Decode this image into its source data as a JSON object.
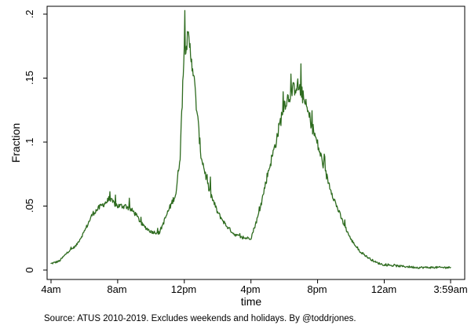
{
  "colors": {
    "series_line": "#2e6b1f",
    "axis": "#000000",
    "background": "#ffffff"
  },
  "chart_data": {
    "type": "line",
    "title": "",
    "xlabel": "time",
    "ylabel": "Fraction",
    "note": "Source: ATUS 2010-2019. Excludes weekends and holidays. By @toddrjones.",
    "grid": false,
    "legend": "none",
    "x_unit": "clock time of day, 4am through 3:59am the next day",
    "xlim": [
      "4am",
      "3:59am"
    ],
    "ylim": [
      0,
      0.2
    ],
    "x_ticks": [
      "4am",
      "8am",
      "12pm",
      "4pm",
      "8pm",
      "12am",
      "3:59am"
    ],
    "y_ticks": [
      "0",
      ".05",
      ".1",
      ".15",
      ".2"
    ],
    "series": [
      {
        "x": [
          "4:00am",
          "4:30am",
          "5:00am",
          "5:30am",
          "6:00am",
          "6:30am",
          "7:00am",
          "7:30am",
          "8:00am",
          "8:30am",
          "9:00am",
          "9:30am",
          "10:00am",
          "10:30am",
          "11:00am",
          "11:30am",
          "11:45am",
          "12:00pm",
          "12:15pm",
          "12:30pm",
          "12:45pm",
          "1:00pm",
          "1:30pm",
          "2:00pm",
          "2:30pm",
          "3:00pm",
          "3:30pm",
          "4:00pm",
          "4:30pm",
          "5:00pm",
          "5:30pm",
          "6:00pm",
          "6:30pm",
          "6:45pm",
          "7:00pm",
          "7:30pm",
          "8:00pm",
          "8:30pm",
          "9:00pm",
          "9:30pm",
          "10:00pm",
          "10:30pm",
          "11:00pm",
          "11:30pm",
          "12:00am",
          "1:00am",
          "2:00am",
          "3:00am",
          "3:59am"
        ],
        "y": [
          0.005,
          0.007,
          0.014,
          0.019,
          0.03,
          0.044,
          0.05,
          0.055,
          0.05,
          0.05,
          0.045,
          0.035,
          0.03,
          0.029,
          0.045,
          0.06,
          0.09,
          0.175,
          0.18,
          0.16,
          0.125,
          0.09,
          0.062,
          0.045,
          0.035,
          0.028,
          0.025,
          0.025,
          0.045,
          0.075,
          0.1,
          0.13,
          0.14,
          0.145,
          0.14,
          0.12,
          0.098,
          0.075,
          0.055,
          0.038,
          0.024,
          0.015,
          0.01,
          0.006,
          0.004,
          0.003,
          0.002,
          0.002,
          0.002
        ]
      }
    ]
  }
}
